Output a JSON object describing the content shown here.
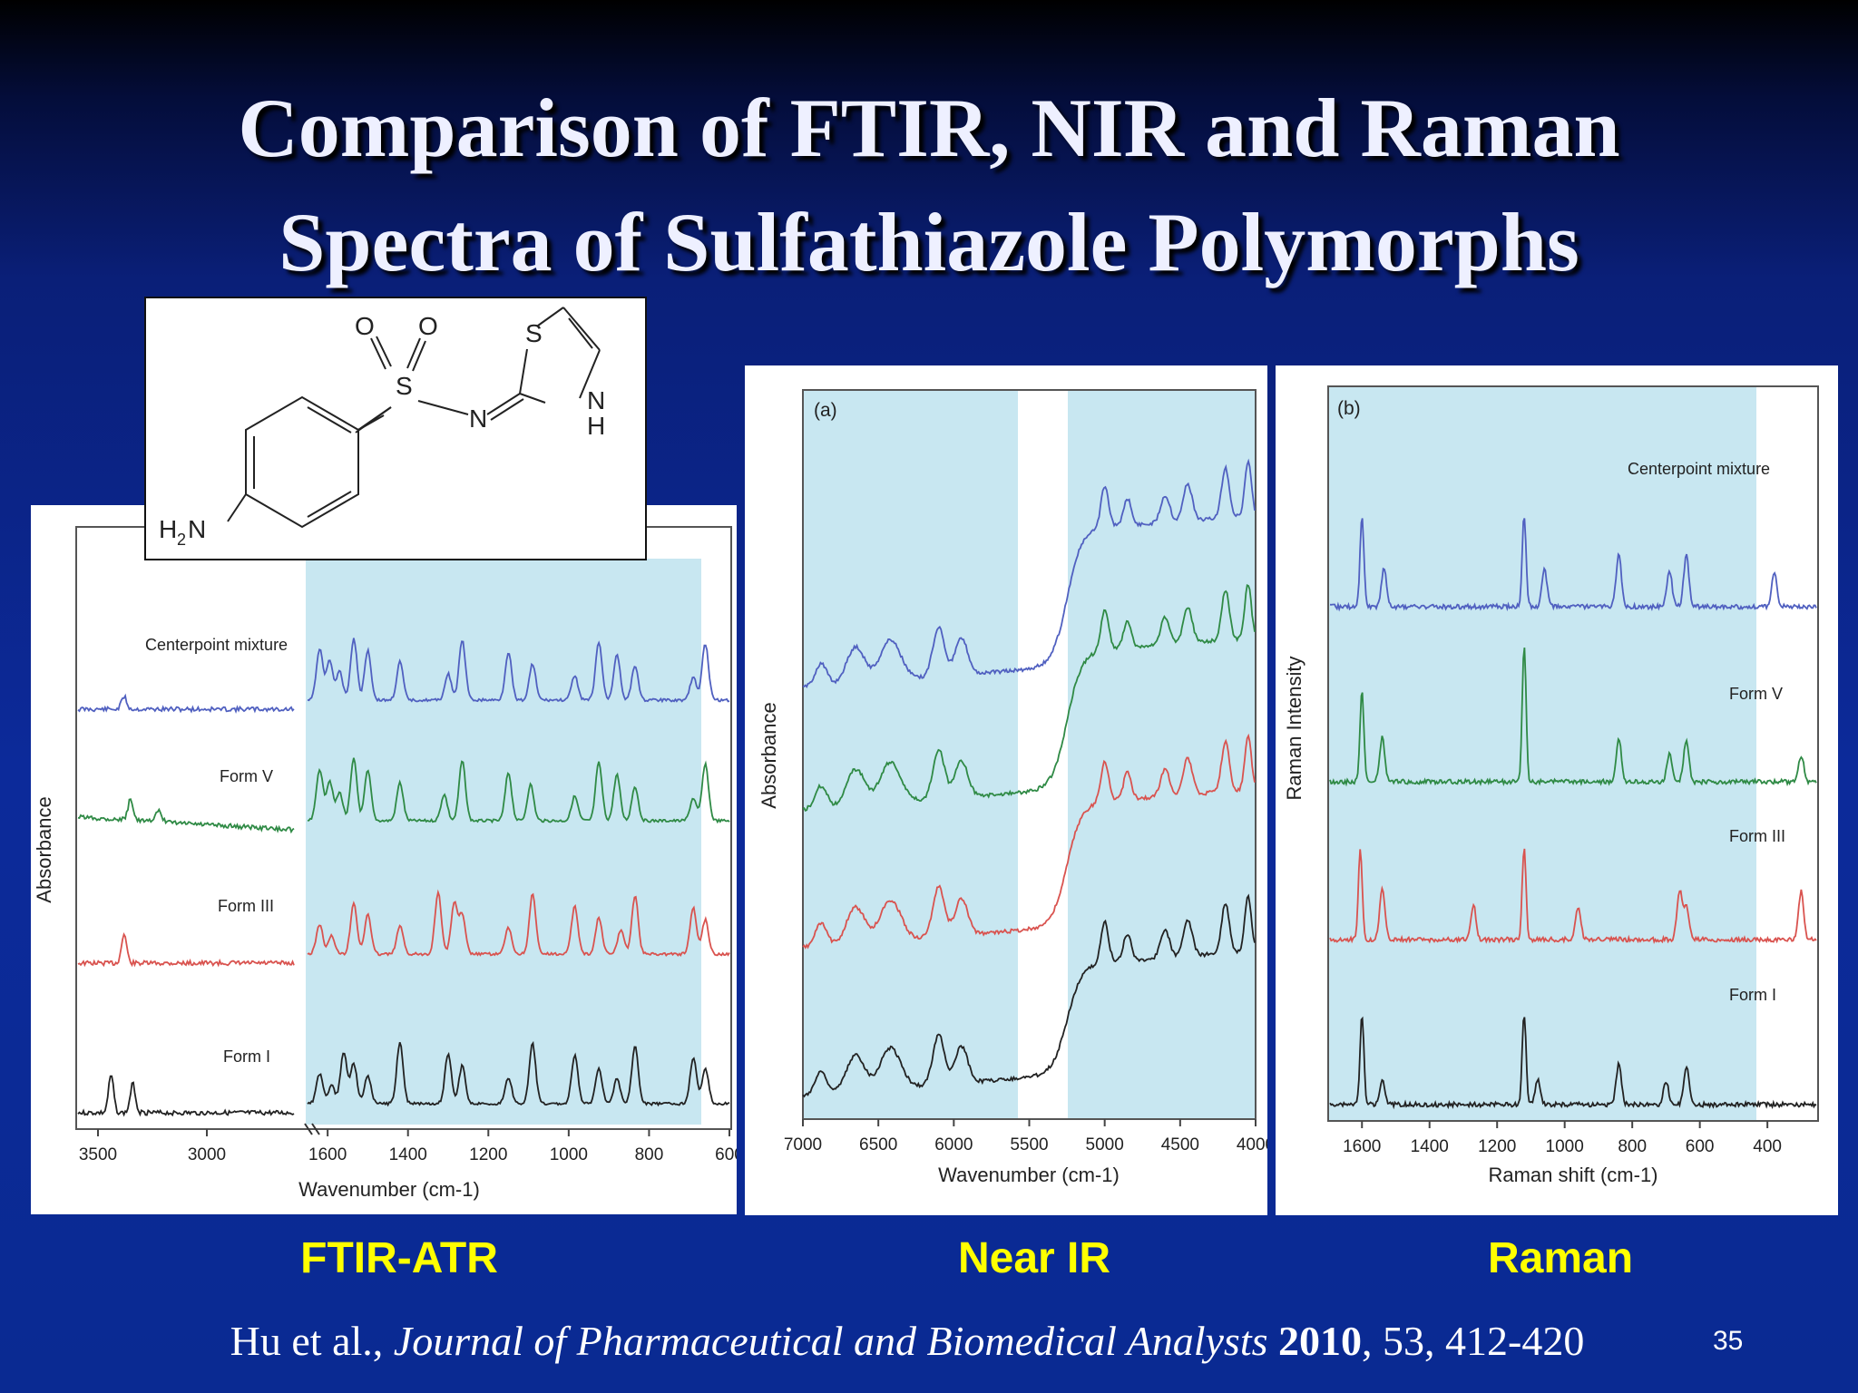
{
  "slide": {
    "title_line1": "Comparison of FTIR, NIR and Raman",
    "title_line2": "Spectra of Sulfathiazole Polymorphs",
    "page_number": "35",
    "colors": {
      "accent_label": "#ffff00",
      "highlight_region": "#c8e7f1"
    }
  },
  "labels": {
    "ftir": "FTIR-ATR",
    "nir": "Near IR",
    "raman": "Raman"
  },
  "citation": {
    "authors": "Hu et al.,",
    "journal": "Journal of  Pharmaceutical and Biomedical Analysts",
    "year": "2010",
    "rest": ", 53, 412-420"
  },
  "structure": {
    "atoms": {
      "o1": "O",
      "o2": "O",
      "s1": "S",
      "n1": "N",
      "s2": "S",
      "n2": "N",
      "h": "H",
      "nh2": "H",
      "nh2_sub": "2",
      "nh2_n": "N"
    }
  },
  "chart_data": [
    {
      "type": "line",
      "panel_label": "",
      "xlabel": "Wavenumber (cm-1)",
      "ylabel": "Absorbance",
      "xticks": [
        "3500",
        "3000",
        "1600",
        "1400",
        "1200",
        "1000",
        "800",
        "600"
      ],
      "axis_break": "between 3000 and 1600",
      "highlight_region": "1650-600",
      "series": [
        {
          "name": "Centerpoint mixture",
          "color": "#5060c0",
          "peaks": [
            3380,
            1620,
            1595,
            1570,
            1535,
            1500,
            1420,
            1300,
            1265,
            1150,
            1090,
            985,
            925,
            880,
            835,
            690,
            660
          ]
        },
        {
          "name": "Form V",
          "color": "#2f8a45",
          "peaks": [
            3350,
            3220,
            1620,
            1595,
            1570,
            1535,
            1500,
            1420,
            1310,
            1265,
            1150,
            1095,
            985,
            925,
            880,
            835,
            690,
            660
          ]
        },
        {
          "name": "Form III",
          "color": "#d9534f",
          "peaks": [
            3380,
            1620,
            1590,
            1535,
            1500,
            1420,
            1325,
            1285,
            1265,
            1150,
            1090,
            985,
            925,
            870,
            835,
            690,
            660
          ]
        },
        {
          "name": "Form I",
          "color": "#222222",
          "peaks": [
            3440,
            3340,
            1620,
            1590,
            1560,
            1535,
            1500,
            1420,
            1300,
            1265,
            1150,
            1090,
            985,
            925,
            880,
            835,
            690,
            660
          ]
        }
      ]
    },
    {
      "type": "line",
      "panel_label": "(a)",
      "xlabel": "Wavenumber (cm-1)",
      "ylabel": "Absorbance",
      "xticks": [
        "7000",
        "6500",
        "6000",
        "5500",
        "5000",
        "4500",
        "4000"
      ],
      "xlim": [
        7000,
        4000
      ],
      "highlight_regions": [
        [
          7000,
          5600
        ],
        [
          5250,
          4000
        ]
      ],
      "series": [
        {
          "name": "Centerpoint mixture",
          "color": "#5060c0"
        },
        {
          "name": "Form V",
          "color": "#2f8a45"
        },
        {
          "name": "Form III",
          "color": "#d9534f"
        },
        {
          "name": "Form I",
          "color": "#222222"
        }
      ]
    },
    {
      "type": "line",
      "panel_label": "(b)",
      "xlabel": "Raman shift (cm-1)",
      "ylabel": "Raman Intensity",
      "xticks": [
        "1600",
        "1400",
        "1200",
        "1000",
        "800",
        "600",
        "400"
      ],
      "xlim": [
        1700,
        250
      ],
      "highlight_region": [
        1700,
        600
      ],
      "series": [
        {
          "name": "Centerpoint mixture",
          "color": "#5060c0",
          "peaks": [
            1600,
            1535,
            1120,
            1060,
            840,
            690,
            640,
            380
          ]
        },
        {
          "name": "Form V",
          "color": "#2f8a45",
          "peaks": [
            1600,
            1540,
            1120,
            840,
            690,
            640,
            300
          ]
        },
        {
          "name": "Form III",
          "color": "#d9534f",
          "peaks": [
            1605,
            1540,
            1270,
            1120,
            960,
            660,
            640,
            300
          ]
        },
        {
          "name": "Form I",
          "color": "#222222",
          "peaks": [
            1600,
            1540,
            1120,
            1080,
            840,
            700,
            640
          ]
        }
      ]
    }
  ]
}
